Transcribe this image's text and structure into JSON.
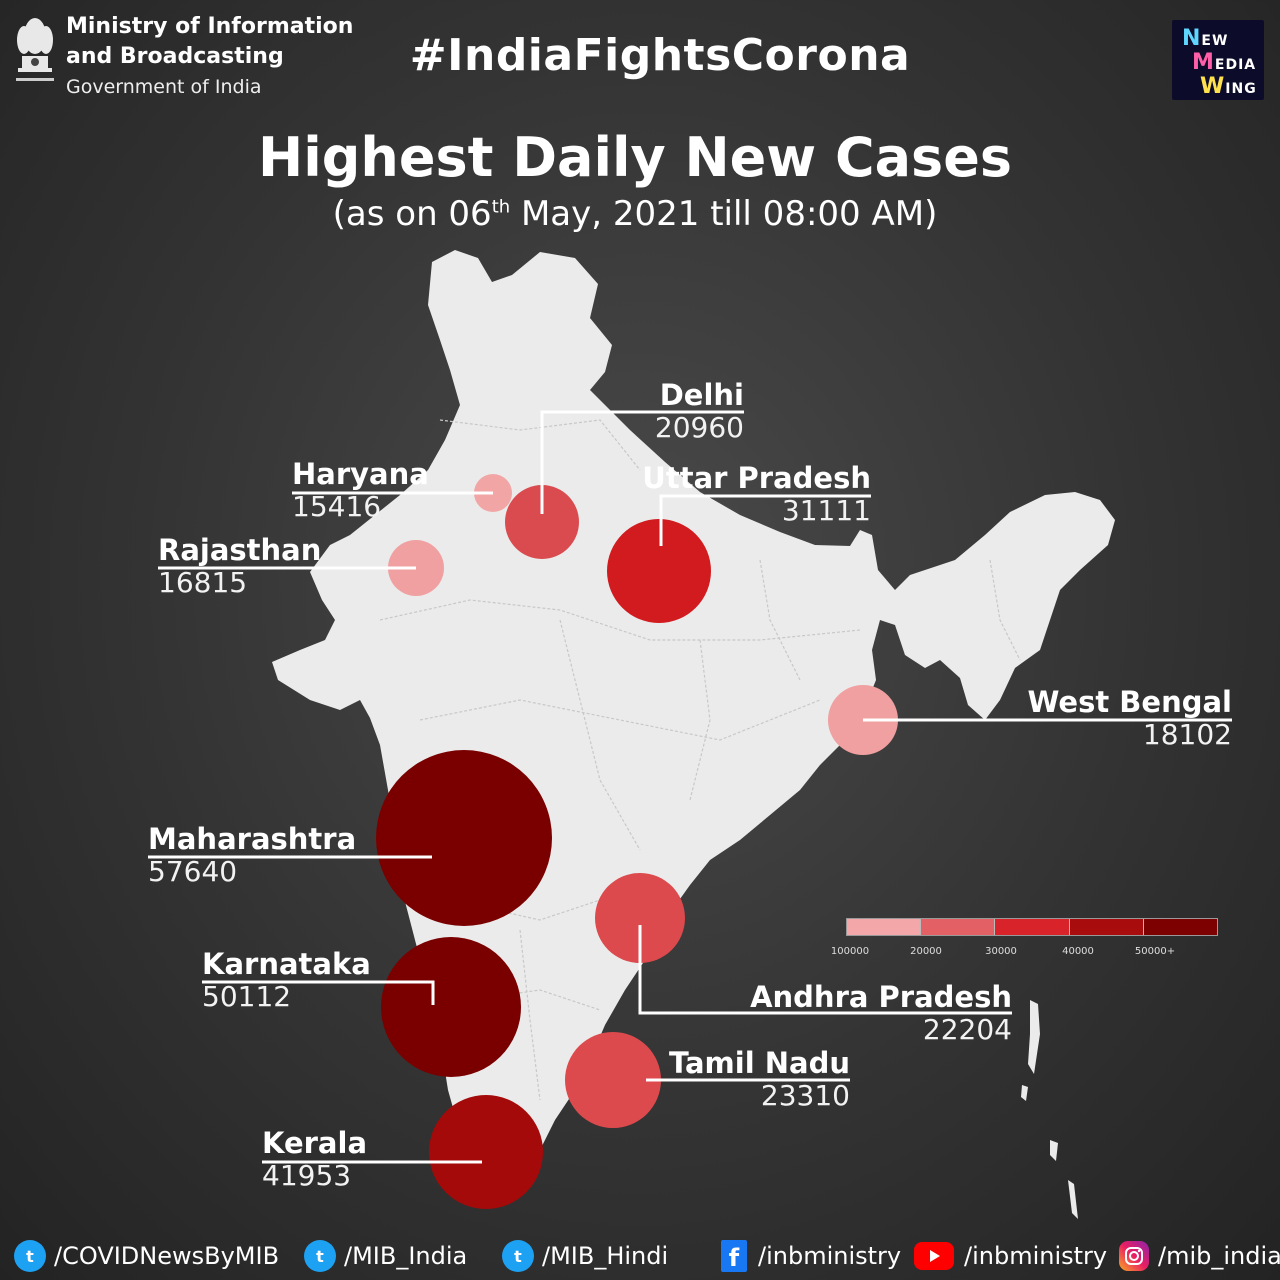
{
  "header": {
    "ministry_line1": "Ministry of Information",
    "ministry_line2": "and Broadcasting",
    "ministry_line3": "Government of India",
    "hashtag": "#IndiaFightsCorona",
    "nmw_line1": "EW",
    "nmw_line2": "EDIA",
    "nmw_line3": "ING",
    "title": "Highest Daily New Cases",
    "subtitle_pre": "(as on 06",
    "subtitle_sup": "th",
    "subtitle_post": " May, 2021 till 08:00 AM)"
  },
  "states": [
    {
      "name": "Delhi",
      "value": "20960",
      "color": "#d94b4f"
    },
    {
      "name": "Haryana",
      "value": "15416",
      "color": "#f2a5a5"
    },
    {
      "name": "Uttar Pradesh",
      "value": "31111",
      "color": "#d11b1f"
    },
    {
      "name": "Rajasthan",
      "value": "16815",
      "color": "#f0a0a0"
    },
    {
      "name": "West Bengal",
      "value": "18102",
      "color": "#f0a0a0"
    },
    {
      "name": "Maharashtra",
      "value": "57640",
      "color": "#7a0000"
    },
    {
      "name": "Karnataka",
      "value": "50112",
      "color": "#7a0000"
    },
    {
      "name": "Andhra Pradesh",
      "value": "22204",
      "color": "#dc4a4d"
    },
    {
      "name": "Tamil Nadu",
      "value": "23310",
      "color": "#dc4a4d"
    },
    {
      "name": "Kerala",
      "value": "41953",
      "color": "#a50a0a"
    }
  ],
  "legend": {
    "colors": [
      "#f4a7a8",
      "#e36164",
      "#d9232a",
      "#a80c0c",
      "#7d0101"
    ],
    "ticks": [
      "100000",
      "20000",
      "30000",
      "40000",
      "50000+"
    ]
  },
  "footer": [
    {
      "icon": "twitter-icon",
      "handle": "/COVIDNewsByMIB"
    },
    {
      "icon": "twitter-icon",
      "handle": "/MIB_India"
    },
    {
      "icon": "twitter-icon",
      "handle": "/MIB_Hindi"
    },
    {
      "icon": "facebook-icon",
      "handle": "/inbministry"
    },
    {
      "icon": "youtube-icon",
      "handle": "/inbministry"
    },
    {
      "icon": "instagram-icon",
      "handle": "/mib_india"
    }
  ]
}
